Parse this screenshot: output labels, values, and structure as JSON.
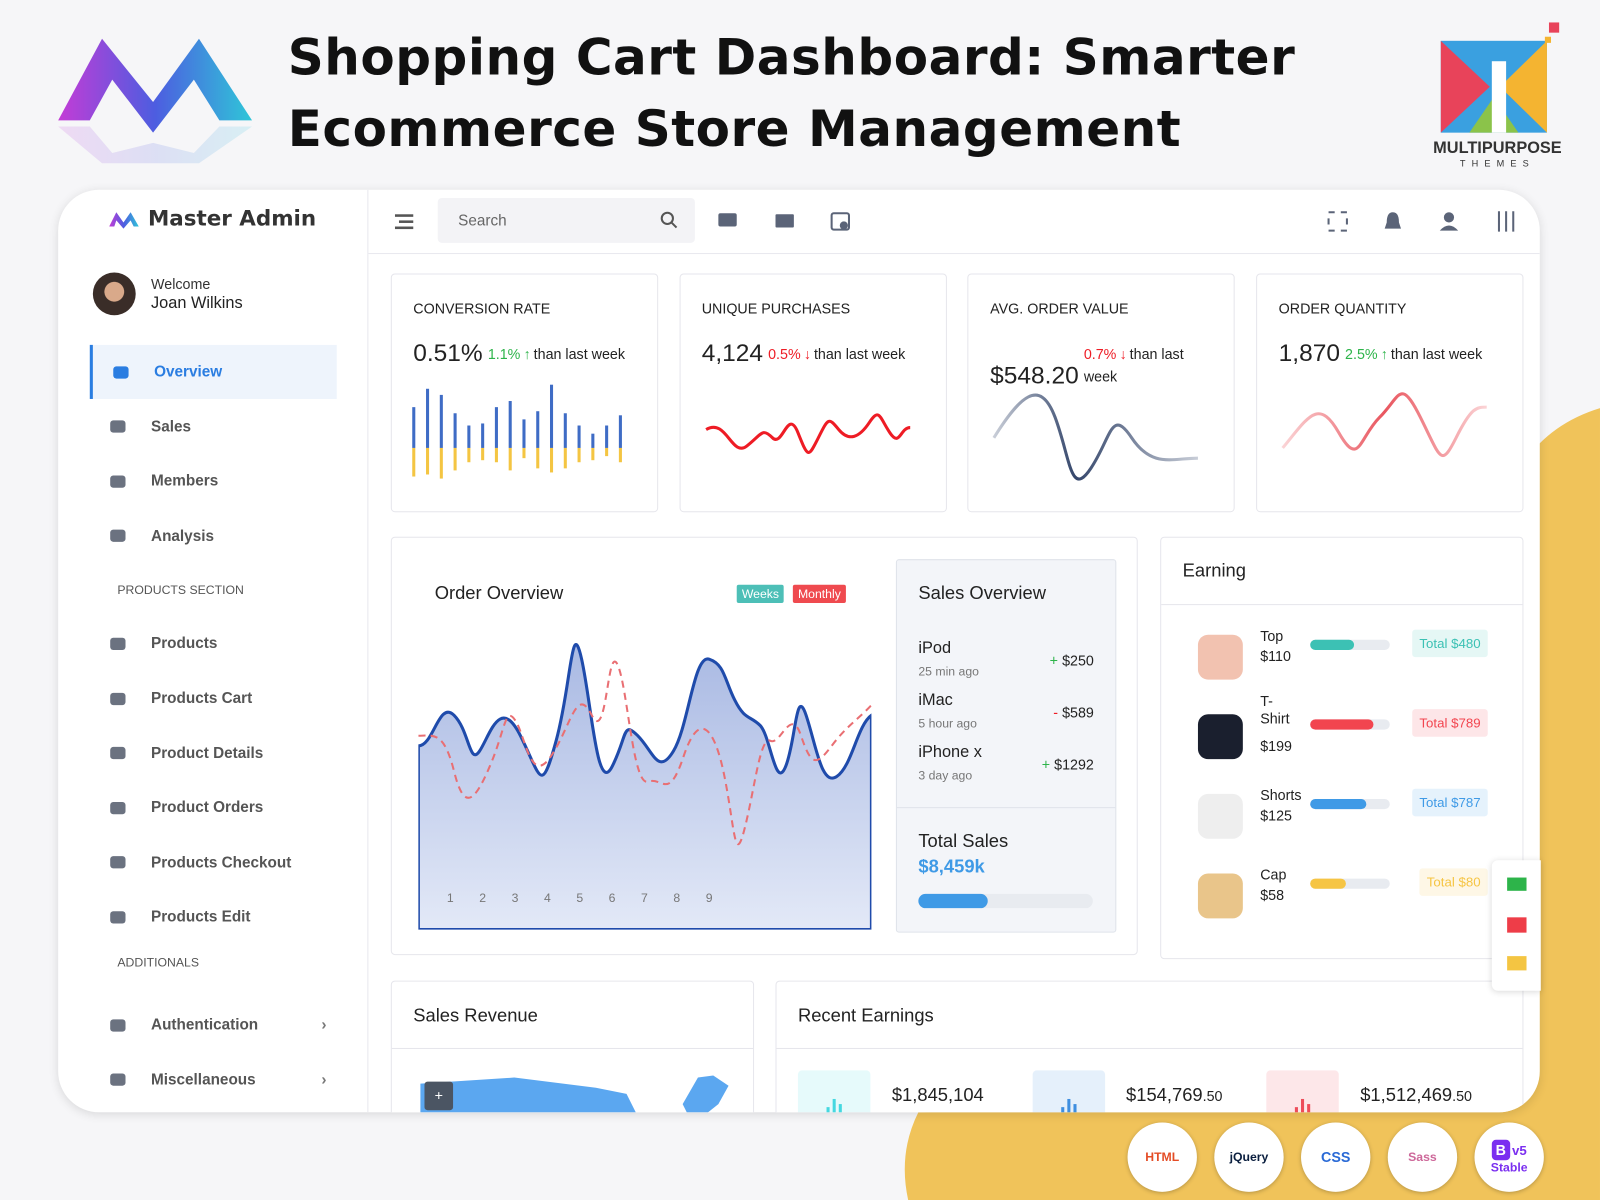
{
  "header": {
    "title_lines": [
      "Shopping Cart Dashboard: Smarter",
      "Ecommerce Store Management"
    ],
    "brand_top": "MULTIPURPOSE",
    "brand_bottom": "THEMES"
  },
  "sidebar": {
    "brand": "Master Admin",
    "welcome": "Welcome",
    "user": "Joan Wilkins",
    "groups": [
      {
        "items": [
          {
            "label": "Overview",
            "active": true
          },
          {
            "label": "Sales"
          },
          {
            "label": "Members"
          },
          {
            "label": "Analysis"
          }
        ]
      },
      {
        "heading": "PRODUCTS SECTION",
        "items": [
          {
            "label": "Products"
          },
          {
            "label": "Products Cart"
          },
          {
            "label": "Product Details"
          },
          {
            "label": "Product Orders"
          },
          {
            "label": "Products Checkout"
          },
          {
            "label": "Products Edit"
          }
        ]
      },
      {
        "heading": "ADDITIONALS",
        "items": [
          {
            "label": "Authentication",
            "expandable": true
          },
          {
            "label": "Miscellaneous",
            "expandable": true
          }
        ]
      }
    ]
  },
  "topbar": {
    "search_placeholder": "Search"
  },
  "stats": [
    {
      "title": "CONVERSION RATE",
      "value": "0.51%",
      "change": "1.1%",
      "trend": "up",
      "note": "than last week"
    },
    {
      "title": "UNIQUE PURCHASES",
      "value": "4,124",
      "change": "0.5%",
      "trend": "down",
      "note": "than last week"
    },
    {
      "title": "AVG. ORDER VALUE",
      "value": "$548.20",
      "change": "0.7%",
      "trend": "down",
      "note": "than last week"
    },
    {
      "title": "ORDER QUANTITY",
      "value": "1,870",
      "change": "2.5%",
      "trend": "up",
      "note": "than last week"
    }
  ],
  "order_overview": {
    "title": "Order Overview",
    "tabs": [
      "Weeks",
      "Monthly"
    ],
    "x_labels": [
      "1",
      "2",
      "3",
      "4",
      "5",
      "6",
      "7",
      "8",
      "9"
    ]
  },
  "sales_overview": {
    "title": "Sales Overview",
    "items": [
      {
        "name": "iPod",
        "time": "25 min ago",
        "sign": "+",
        "amount": "$250"
      },
      {
        "name": "iMac",
        "time": "5 hour ago",
        "sign": "-",
        "amount": "$589"
      },
      {
        "name": "iPhone x",
        "time": "3 day ago",
        "sign": "+",
        "amount": "$1292"
      }
    ],
    "total_label": "Total Sales",
    "total": "$8,459k"
  },
  "earning": {
    "title": "Earning",
    "items": [
      {
        "name": "Top",
        "price": "$110",
        "total": "Total $480",
        "color": "#3cc1b4"
      },
      {
        "name": "T-Shirt",
        "price": "$199",
        "total": "Total $789",
        "color": "#f2454f"
      },
      {
        "name": "Shorts",
        "price": "$125",
        "total": "Total $787",
        "color": "#3f9ae6"
      },
      {
        "name": "Cap",
        "price": "$58",
        "total": "Total $80",
        "color": "#f6c544"
      }
    ]
  },
  "sales_revenue": {
    "title": "Sales Revenue"
  },
  "recent_earnings": {
    "title": "Recent Earnings",
    "items": [
      {
        "amount": "$1,845,104",
        "color": "#45d8e0"
      },
      {
        "amount": "$154,769",
        "cents": ".50",
        "color": "#3f8fe0"
      },
      {
        "amount": "$1,512,469",
        "cents": ".50",
        "color": "#ee4d5a"
      }
    ]
  },
  "badges": [
    {
      "label": "HTML",
      "color": "#e44d26"
    },
    {
      "label": "jQuery",
      "color": "#0b1f3f"
    },
    {
      "label": "CSS",
      "color": "#2a6ad6"
    },
    {
      "label": "Sass",
      "color": "#cd6799"
    },
    {
      "label": "B",
      "extra": "v5",
      "sub": "Stable",
      "color": "#7b2ff0"
    }
  ]
}
